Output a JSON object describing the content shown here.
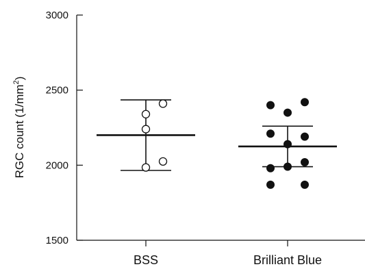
{
  "chart_data": {
    "type": "scatter",
    "ylabel": "RGC count (1/mm",
    "ylabel_superscript": "2",
    "ylabel_close": ")",
    "ylim": [
      1500,
      3000
    ],
    "yticks": [
      {
        "value": 1500,
        "label": "1500"
      },
      {
        "value": 2000,
        "label": "2000"
      },
      {
        "value": 2500,
        "label": "2500"
      },
      {
        "value": 3000,
        "label": "3000"
      }
    ],
    "categories": [
      "BSS",
      "Brilliant Blue"
    ],
    "grid": false,
    "groups": [
      {
        "category": "BSS",
        "marker": "open-circle",
        "mean": 2200,
        "error_low": 1965,
        "error_high": 2435,
        "points": [
          {
            "offset": 0,
            "y": 2340
          },
          {
            "offset": 1,
            "y": 2410
          },
          {
            "offset": 0,
            "y": 2240
          },
          {
            "offset": 0,
            "y": 1985
          },
          {
            "offset": 1,
            "y": 2025
          }
        ]
      },
      {
        "category": "Brilliant Blue",
        "marker": "filled-circle",
        "mean": 2125,
        "error_low": 1990,
        "error_high": 2260,
        "points": [
          {
            "offset": -1,
            "y": 2400
          },
          {
            "offset": 1,
            "y": 2420
          },
          {
            "offset": 0,
            "y": 2350
          },
          {
            "offset": -1,
            "y": 2210
          },
          {
            "offset": 1,
            "y": 2190
          },
          {
            "offset": 0,
            "y": 2140
          },
          {
            "offset": -1,
            "y": 1980
          },
          {
            "offset": 1,
            "y": 2020
          },
          {
            "offset": 0,
            "y": 1990
          },
          {
            "offset": -1,
            "y": 1870
          },
          {
            "offset": 1,
            "y": 1870
          }
        ]
      }
    ]
  }
}
